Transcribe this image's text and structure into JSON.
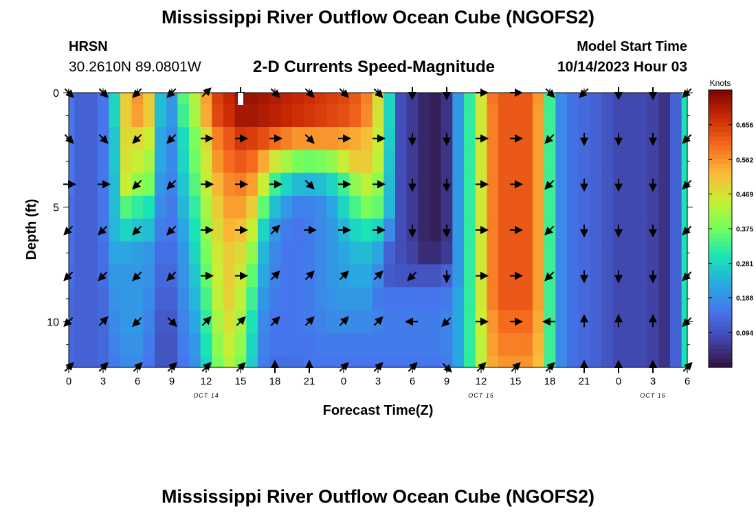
{
  "header": {
    "title": "Mississippi River Outflow Ocean Cube (NGOFS2)",
    "station_id": "HRSN",
    "station_coords": "30.2610N  89.0801W",
    "subtitle": "2-D Currents Speed-Magnitude",
    "model_start_label": "Model Start Time",
    "model_start_time": "10/14/2023 Hour 03"
  },
  "footer": {
    "title": "Mississippi River Outflow Ocean Cube (NGOFS2)"
  },
  "chart_data": {
    "type": "heatmap",
    "title": "2-D Currents Speed-Magnitude",
    "xlabel": "Forecast Time(Z)",
    "ylabel": "Depth (ft)",
    "x_range_hours": [
      0,
      54
    ],
    "ylim": [
      0,
      12
    ],
    "x_ticks": [
      "0",
      "3",
      "6",
      "9",
      "12",
      "15",
      "18",
      "21",
      "0",
      "3",
      "6",
      "9",
      "12",
      "15",
      "18",
      "21",
      "0",
      "3",
      "6"
    ],
    "y_ticks": [
      "0",
      "5",
      "10"
    ],
    "date_labels": [
      {
        "text": "OCT 14",
        "hour": 12
      },
      {
        "text": "OCT 15",
        "hour": 36
      },
      {
        "text": "OCT 16",
        "hour": 51
      }
    ],
    "colorbar": {
      "label": "Knots",
      "min": 0.0,
      "max": 0.75,
      "ticks": [
        "0.094",
        "0.188",
        "0.281",
        "0.375",
        "0.469",
        "0.562",
        "0.656"
      ]
    },
    "speed_knots": {
      "hours": [
        0,
        1,
        2,
        3,
        4,
        5,
        6,
        7,
        8,
        9,
        10,
        11,
        12,
        13,
        14,
        15,
        16,
        17,
        18,
        19,
        20,
        21,
        22,
        23,
        24,
        25,
        26,
        27,
        28,
        29,
        30,
        31,
        32,
        33,
        34,
        35,
        36,
        37,
        38,
        39,
        40,
        41,
        42,
        43,
        44,
        45,
        46,
        47,
        48,
        49,
        50,
        51,
        52,
        53,
        54
      ],
      "depths_ft": [
        0,
        1,
        2,
        3,
        4,
        5,
        6,
        7,
        8,
        9,
        10,
        11,
        12
      ],
      "values": [
        [
          0.15,
          0.12,
          0.12,
          0.15,
          0.28,
          0.5,
          0.56,
          0.5,
          0.25,
          0.2,
          0.35,
          0.43,
          0.55,
          0.65,
          0.68,
          0.72,
          0.72,
          0.71,
          0.7,
          0.69,
          0.68,
          0.67,
          0.66,
          0.65,
          0.64,
          0.62,
          0.58,
          0.48,
          0.28,
          0.09,
          0.06,
          0.03,
          0.02,
          0.05,
          0.2,
          0.32,
          0.46,
          0.59,
          0.62,
          0.62,
          0.62,
          0.56,
          0.33,
          0.18,
          0.14,
          0.13,
          0.12,
          0.1,
          0.08,
          0.08,
          0.08,
          0.07,
          0.05,
          0.12,
          0.3
        ],
        [
          0.15,
          0.12,
          0.12,
          0.15,
          0.28,
          0.5,
          0.55,
          0.5,
          0.25,
          0.2,
          0.33,
          0.42,
          0.54,
          0.64,
          0.67,
          0.71,
          0.71,
          0.7,
          0.69,
          0.68,
          0.67,
          0.66,
          0.65,
          0.64,
          0.63,
          0.61,
          0.57,
          0.47,
          0.28,
          0.09,
          0.06,
          0.03,
          0.02,
          0.05,
          0.2,
          0.32,
          0.46,
          0.58,
          0.62,
          0.62,
          0.62,
          0.55,
          0.33,
          0.18,
          0.14,
          0.13,
          0.12,
          0.1,
          0.08,
          0.08,
          0.08,
          0.07,
          0.05,
          0.12,
          0.3
        ],
        [
          0.15,
          0.12,
          0.12,
          0.15,
          0.26,
          0.48,
          0.48,
          0.45,
          0.22,
          0.18,
          0.29,
          0.38,
          0.48,
          0.58,
          0.62,
          0.66,
          0.65,
          0.63,
          0.6,
          0.58,
          0.56,
          0.56,
          0.56,
          0.56,
          0.55,
          0.54,
          0.52,
          0.45,
          0.27,
          0.09,
          0.06,
          0.03,
          0.02,
          0.05,
          0.2,
          0.32,
          0.46,
          0.58,
          0.62,
          0.62,
          0.62,
          0.55,
          0.33,
          0.18,
          0.14,
          0.13,
          0.12,
          0.1,
          0.08,
          0.08,
          0.08,
          0.07,
          0.05,
          0.12,
          0.3
        ],
        [
          0.15,
          0.12,
          0.12,
          0.15,
          0.26,
          0.47,
          0.45,
          0.42,
          0.22,
          0.18,
          0.28,
          0.37,
          0.46,
          0.56,
          0.6,
          0.62,
          0.6,
          0.54,
          0.46,
          0.42,
          0.38,
          0.37,
          0.38,
          0.4,
          0.45,
          0.5,
          0.5,
          0.44,
          0.26,
          0.09,
          0.06,
          0.03,
          0.02,
          0.05,
          0.2,
          0.32,
          0.46,
          0.58,
          0.62,
          0.62,
          0.62,
          0.55,
          0.33,
          0.18,
          0.14,
          0.13,
          0.12,
          0.1,
          0.08,
          0.08,
          0.08,
          0.07,
          0.05,
          0.12,
          0.3
        ],
        [
          0.15,
          0.12,
          0.12,
          0.15,
          0.25,
          0.45,
          0.4,
          0.38,
          0.2,
          0.17,
          0.26,
          0.35,
          0.44,
          0.53,
          0.57,
          0.58,
          0.55,
          0.45,
          0.33,
          0.28,
          0.25,
          0.24,
          0.25,
          0.28,
          0.33,
          0.4,
          0.44,
          0.4,
          0.25,
          0.09,
          0.06,
          0.03,
          0.02,
          0.05,
          0.2,
          0.32,
          0.46,
          0.58,
          0.62,
          0.62,
          0.62,
          0.55,
          0.33,
          0.18,
          0.14,
          0.13,
          0.12,
          0.1,
          0.08,
          0.08,
          0.08,
          0.07,
          0.05,
          0.12,
          0.3
        ],
        [
          0.14,
          0.12,
          0.12,
          0.15,
          0.25,
          0.35,
          0.32,
          0.3,
          0.18,
          0.16,
          0.24,
          0.32,
          0.42,
          0.5,
          0.55,
          0.55,
          0.5,
          0.36,
          0.25,
          0.2,
          0.17,
          0.17,
          0.18,
          0.22,
          0.28,
          0.34,
          0.38,
          0.36,
          0.24,
          0.09,
          0.06,
          0.03,
          0.02,
          0.05,
          0.2,
          0.32,
          0.46,
          0.58,
          0.62,
          0.62,
          0.62,
          0.55,
          0.33,
          0.18,
          0.14,
          0.13,
          0.12,
          0.1,
          0.08,
          0.08,
          0.08,
          0.07,
          0.05,
          0.12,
          0.3
        ],
        [
          0.14,
          0.12,
          0.12,
          0.15,
          0.24,
          0.28,
          0.26,
          0.25,
          0.16,
          0.15,
          0.22,
          0.3,
          0.4,
          0.48,
          0.53,
          0.52,
          0.45,
          0.28,
          0.2,
          0.16,
          0.15,
          0.16,
          0.18,
          0.2,
          0.24,
          0.28,
          0.3,
          0.28,
          0.18,
          0.09,
          0.06,
          0.03,
          0.02,
          0.05,
          0.2,
          0.32,
          0.46,
          0.58,
          0.62,
          0.62,
          0.62,
          0.55,
          0.33,
          0.18,
          0.14,
          0.13,
          0.12,
          0.1,
          0.08,
          0.08,
          0.08,
          0.07,
          0.05,
          0.12,
          0.3
        ],
        [
          0.14,
          0.12,
          0.12,
          0.14,
          0.22,
          0.22,
          0.21,
          0.2,
          0.14,
          0.14,
          0.2,
          0.28,
          0.38,
          0.46,
          0.5,
          0.48,
          0.4,
          0.24,
          0.18,
          0.15,
          0.15,
          0.16,
          0.18,
          0.2,
          0.22,
          0.24,
          0.25,
          0.22,
          0.12,
          0.09,
          0.07,
          0.04,
          0.04,
          0.06,
          0.2,
          0.32,
          0.46,
          0.58,
          0.62,
          0.62,
          0.62,
          0.55,
          0.33,
          0.18,
          0.14,
          0.13,
          0.12,
          0.1,
          0.08,
          0.08,
          0.08,
          0.07,
          0.05,
          0.12,
          0.3
        ],
        [
          0.14,
          0.12,
          0.12,
          0.14,
          0.2,
          0.2,
          0.2,
          0.19,
          0.13,
          0.13,
          0.19,
          0.26,
          0.36,
          0.45,
          0.5,
          0.46,
          0.36,
          0.22,
          0.17,
          0.15,
          0.15,
          0.16,
          0.18,
          0.2,
          0.21,
          0.22,
          0.22,
          0.18,
          0.11,
          0.1,
          0.1,
          0.1,
          0.1,
          0.12,
          0.2,
          0.32,
          0.46,
          0.58,
          0.62,
          0.62,
          0.62,
          0.55,
          0.33,
          0.18,
          0.14,
          0.13,
          0.12,
          0.1,
          0.08,
          0.08,
          0.08,
          0.07,
          0.05,
          0.12,
          0.3
        ],
        [
          0.13,
          0.12,
          0.12,
          0.13,
          0.19,
          0.2,
          0.2,
          0.18,
          0.12,
          0.12,
          0.18,
          0.24,
          0.34,
          0.44,
          0.49,
          0.44,
          0.33,
          0.2,
          0.16,
          0.15,
          0.15,
          0.16,
          0.18,
          0.19,
          0.2,
          0.2,
          0.2,
          0.16,
          0.15,
          0.15,
          0.15,
          0.15,
          0.15,
          0.16,
          0.22,
          0.32,
          0.46,
          0.58,
          0.62,
          0.62,
          0.62,
          0.55,
          0.33,
          0.18,
          0.14,
          0.13,
          0.12,
          0.1,
          0.08,
          0.08,
          0.08,
          0.07,
          0.05,
          0.12,
          0.3
        ],
        [
          0.13,
          0.12,
          0.12,
          0.13,
          0.18,
          0.2,
          0.2,
          0.17,
          0.11,
          0.11,
          0.17,
          0.22,
          0.32,
          0.42,
          0.47,
          0.42,
          0.3,
          0.18,
          0.15,
          0.15,
          0.15,
          0.16,
          0.17,
          0.18,
          0.18,
          0.18,
          0.18,
          0.17,
          0.16,
          0.16,
          0.16,
          0.16,
          0.16,
          0.17,
          0.22,
          0.32,
          0.45,
          0.56,
          0.6,
          0.6,
          0.6,
          0.54,
          0.33,
          0.18,
          0.14,
          0.13,
          0.12,
          0.1,
          0.08,
          0.08,
          0.08,
          0.07,
          0.05,
          0.12,
          0.3
        ],
        [
          0.13,
          0.12,
          0.12,
          0.13,
          0.17,
          0.19,
          0.19,
          0.16,
          0.1,
          0.1,
          0.16,
          0.2,
          0.3,
          0.4,
          0.45,
          0.4,
          0.28,
          0.17,
          0.15,
          0.15,
          0.15,
          0.15,
          0.16,
          0.16,
          0.16,
          0.16,
          0.16,
          0.16,
          0.16,
          0.16,
          0.16,
          0.16,
          0.16,
          0.17,
          0.22,
          0.32,
          0.44,
          0.55,
          0.58,
          0.58,
          0.58,
          0.53,
          0.33,
          0.18,
          0.14,
          0.13,
          0.12,
          0.1,
          0.08,
          0.08,
          0.08,
          0.07,
          0.05,
          0.12,
          0.3
        ],
        [
          0.13,
          0.12,
          0.12,
          0.13,
          0.16,
          0.18,
          0.18,
          0.15,
          0.1,
          0.1,
          0.15,
          0.19,
          0.28,
          0.38,
          0.43,
          0.38,
          0.27,
          0.16,
          0.14,
          0.14,
          0.14,
          0.15,
          0.15,
          0.15,
          0.15,
          0.15,
          0.15,
          0.15,
          0.15,
          0.15,
          0.15,
          0.15,
          0.15,
          0.16,
          0.22,
          0.32,
          0.44,
          0.54,
          0.56,
          0.56,
          0.56,
          0.52,
          0.33,
          0.18,
          0.14,
          0.13,
          0.12,
          0.1,
          0.08,
          0.08,
          0.08,
          0.07,
          0.05,
          0.12,
          0.3
        ]
      ]
    },
    "vectors": {
      "hours": [
        0,
        3,
        6,
        9,
        12,
        15,
        18,
        21,
        24,
        27,
        30,
        33,
        36,
        39,
        42,
        45,
        48,
        51,
        54
      ],
      "depths_ft": [
        0,
        2,
        4,
        6,
        8,
        10,
        12
      ],
      "directions_deg": [
        [
          135,
          135,
          225,
          225,
          45,
          180,
          135,
          135,
          135,
          135,
          180,
          180,
          90,
          90,
          135,
          225,
          180,
          180,
          225
        ],
        [
          135,
          135,
          225,
          225,
          90,
          90,
          90,
          135,
          90,
          90,
          180,
          180,
          90,
          90,
          225,
          180,
          180,
          180,
          225
        ],
        [
          90,
          90,
          225,
          225,
          90,
          90,
          90,
          135,
          90,
          90,
          180,
          180,
          90,
          90,
          225,
          180,
          180,
          180,
          225
        ],
        [
          225,
          225,
          225,
          225,
          90,
          90,
          45,
          90,
          90,
          90,
          180,
          180,
          90,
          90,
          225,
          180,
          180,
          180,
          225
        ],
        [
          225,
          225,
          225,
          225,
          90,
          90,
          45,
          45,
          45,
          45,
          225,
          180,
          90,
          90,
          225,
          180,
          180,
          180,
          225
        ],
        [
          225,
          45,
          225,
          135,
          45,
          45,
          45,
          45,
          45,
          45,
          270,
          225,
          90,
          90,
          270,
          0,
          0,
          0,
          225
        ],
        [
          45,
          45,
          45,
          45,
          45,
          45,
          0,
          0,
          45,
          45,
          45,
          135,
          45,
          45,
          45,
          0,
          0,
          0,
          45
        ]
      ]
    }
  }
}
